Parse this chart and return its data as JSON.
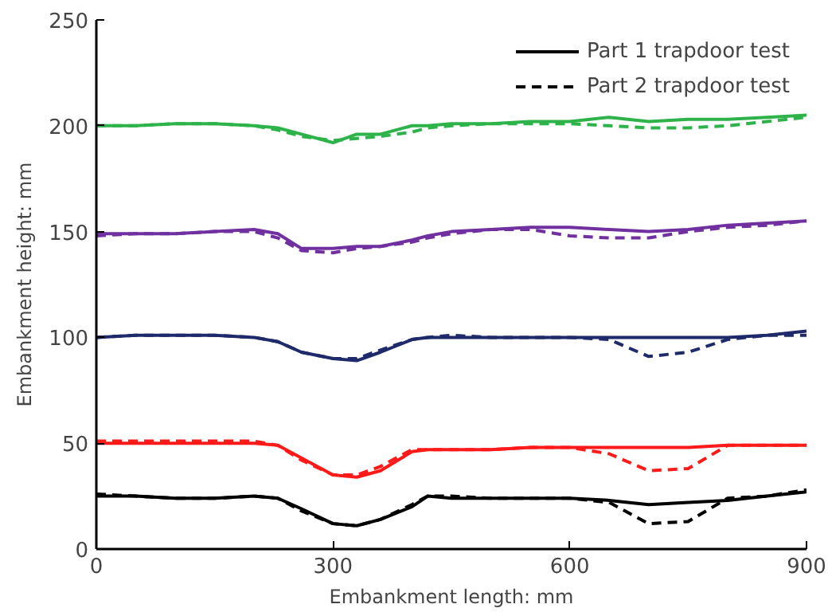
{
  "chart_data": {
    "type": "line",
    "xlabel": "Embankment length: mm",
    "ylabel": "Embankment height: mm",
    "x": [
      0,
      50,
      100,
      150,
      200,
      230,
      260,
      300,
      330,
      360,
      400,
      420,
      450,
      500,
      550,
      600,
      650,
      700,
      750,
      800,
      850,
      900
    ],
    "xlim": [
      0,
      900
    ],
    "xticks": [
      0,
      300,
      600,
      900
    ],
    "ylim": [
      0,
      250
    ],
    "yticks": [
      0,
      50,
      100,
      150,
      200,
      250
    ],
    "grid": false,
    "legend": "top right",
    "marker": "none",
    "series": [
      {
        "name": "Part 1 trapdoor test",
        "color": "#000000",
        "line_style": "solid",
        "values": [
          25,
          25,
          24,
          24,
          25,
          24,
          19,
          12,
          11,
          14,
          20,
          25,
          24,
          24,
          24,
          24,
          23,
          21,
          22,
          23,
          25,
          27
        ]
      },
      {
        "name": "Part 2 trapdoor test",
        "color": "#000000",
        "line_style": "dashed",
        "values": [
          26,
          25,
          24,
          24,
          25,
          24,
          18,
          12,
          11,
          14,
          21,
          25,
          25,
          24,
          24,
          24,
          22,
          12,
          13,
          24,
          25,
          28
        ]
      },
      {
        "color": "#ff1a1a",
        "line_style": "solid",
        "values": [
          50,
          50,
          50,
          50,
          50,
          49,
          43,
          35,
          34,
          37,
          46,
          47,
          47,
          47,
          48,
          48,
          48,
          48,
          48,
          49,
          49,
          49
        ]
      },
      {
        "color": "#ff1a1a",
        "line_style": "dashed",
        "values": [
          51,
          51,
          51,
          51,
          51,
          49,
          42,
          35,
          35,
          39,
          47,
          47,
          47,
          47,
          48,
          48,
          45,
          37,
          38,
          49,
          49,
          49
        ]
      },
      {
        "color": "#1f2a6b",
        "line_style": "solid",
        "values": [
          100,
          101,
          101,
          101,
          100,
          98,
          93,
          90,
          89,
          93,
          99,
          100,
          100,
          100,
          100,
          100,
          100,
          100,
          100,
          100,
          101,
          103
        ]
      },
      {
        "color": "#1f2a6b",
        "line_style": "dashed",
        "values": [
          100,
          101,
          101,
          101,
          100,
          98,
          93,
          90,
          90,
          94,
          99,
          100,
          101,
          100,
          100,
          100,
          99,
          91,
          93,
          99,
          101,
          101
        ]
      },
      {
        "color": "#7030a0",
        "line_style": "solid",
        "values": [
          149,
          149,
          149,
          150,
          151,
          149,
          142,
          142,
          143,
          143,
          146,
          148,
          150,
          151,
          152,
          152,
          151,
          150,
          151,
          153,
          154,
          155
        ]
      },
      {
        "color": "#7030a0",
        "line_style": "dashed",
        "values": [
          148,
          149,
          149,
          150,
          150,
          147,
          141,
          140,
          142,
          143,
          145,
          147,
          149,
          151,
          151,
          148,
          147,
          147,
          150,
          152,
          153,
          155
        ]
      },
      {
        "color": "#2db34a",
        "line_style": "solid",
        "values": [
          200,
          200,
          201,
          201,
          200,
          199,
          196,
          192,
          196,
          196,
          200,
          200,
          201,
          201,
          202,
          202,
          204,
          202,
          203,
          203,
          204,
          205
        ]
      },
      {
        "color": "#2db34a",
        "line_style": "dashed",
        "values": [
          200,
          200,
          201,
          201,
          200,
          198,
          195,
          193,
          194,
          195,
          197,
          199,
          200,
          201,
          201,
          201,
          200,
          199,
          199,
          200,
          202,
          204
        ]
      }
    ]
  }
}
